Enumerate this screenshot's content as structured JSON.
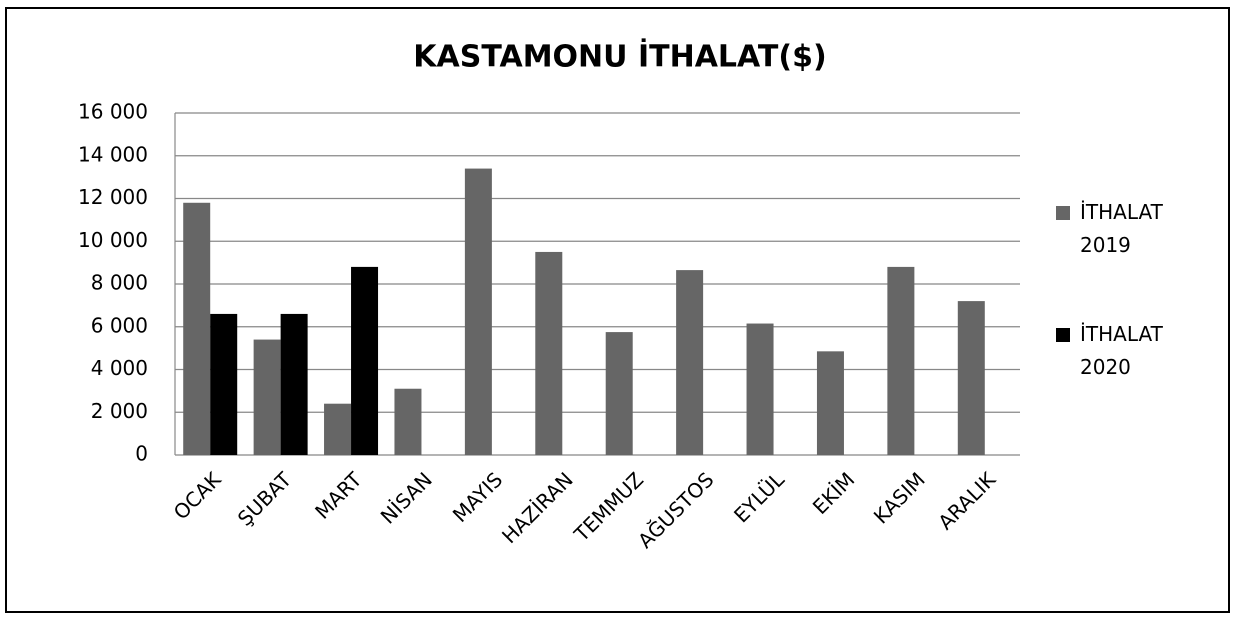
{
  "chart_data": {
    "type": "bar",
    "title": "KASTAMONU İTHALAT($)",
    "categories": [
      "OCAK",
      "ŞUBAT",
      "MART",
      "NİSAN",
      "MAYIS",
      "HAZİRAN",
      "TEMMUZ",
      "AĞUSTOS",
      "EYLÜL",
      "EKİM",
      "KASIM",
      "ARALIK"
    ],
    "series": [
      {
        "name": "İTHALAT 2019",
        "color": "#666666",
        "values": [
          11800,
          5400,
          2400,
          3100,
          13400,
          9500,
          5750,
          8650,
          6150,
          4850,
          8800,
          7200
        ]
      },
      {
        "name": "İTHALAT 2020",
        "color": "#000000",
        "values": [
          6600,
          6600,
          8800,
          null,
          null,
          null,
          null,
          null,
          null,
          null,
          null,
          null
        ]
      }
    ],
    "ylim": [
      0,
      16000
    ],
    "yticks": [
      0,
      {
        "value": 2000,
        "label": "2 000"
      },
      {
        "value": 4000,
        "label": "4 000"
      },
      {
        "value": 6000,
        "label": "6 000"
      },
      {
        "value": 8000,
        "label": "8 000"
      },
      {
        "value": 10000,
        "label": "10 000"
      },
      {
        "value": 12000,
        "label": "12 000"
      },
      {
        "value": 14000,
        "label": "14 000"
      },
      {
        "value": 16000,
        "label": "16 000"
      }
    ],
    "grid": true,
    "legend": "right"
  }
}
